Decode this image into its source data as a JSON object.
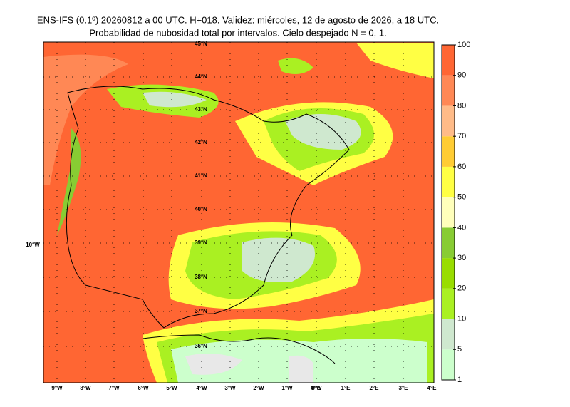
{
  "title": [
    "ENS-IFS (0.1º) 20260812 a 00 UTC. H+018. Validez: miércoles, 12 de agosto de 2026, a 18 UTC.",
    "Probabilidad de nubosidad total por intervalos. Cielo despejado N = 0, 1."
  ],
  "colorbar": {
    "ticks": [
      1,
      5,
      10,
      20,
      30,
      40,
      50,
      60,
      70,
      80,
      90,
      100
    ],
    "colors": [
      "#ccffcc",
      "#cfe8cf",
      "#aaf022",
      "#99dd00",
      "#88cc33",
      "#ffffbb",
      "#ffff44",
      "#ffcc33",
      "#ffbb88",
      "#ff8855",
      "#ff6633"
    ]
  },
  "lat_labels": [
    "45°N",
    "44°N",
    "43°N",
    "42°N",
    "41°N",
    "40°N",
    "39°N",
    "38°N",
    "37°N",
    "36°N"
  ],
  "lon_labels": [
    "9°W",
    "8°W",
    "7°W",
    "6°W",
    "5°W",
    "4°W",
    "3°W",
    "2°W",
    "1°W",
    "0°W",
    "0°E",
    "1°E",
    "2°E",
    "3°E",
    "4°E"
  ],
  "west_label": "10°W"
}
